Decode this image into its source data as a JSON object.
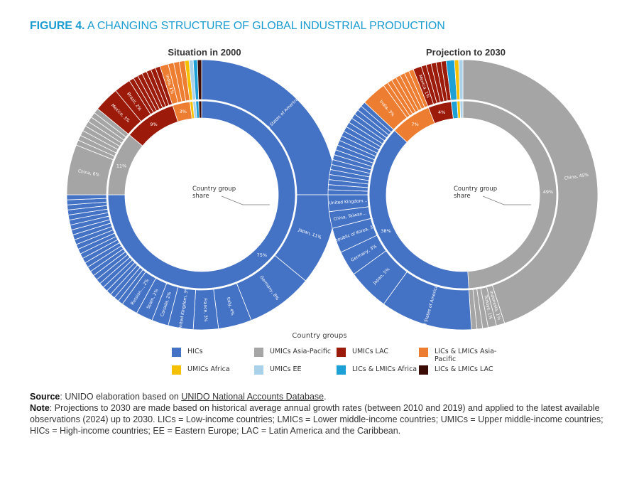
{
  "figure": {
    "label": "FIGURE 4.",
    "title": "A CHANGING STRUCTURE OF GLOBAL INDUSTRIAL PRODUCTION"
  },
  "colors": {
    "HICs": "#4472c4",
    "UMICs Asia-Pacific": "#a5a5a5",
    "UMICs LAC": "#9b1a0a",
    "LICs & LMICs Asia-Pacific": "#ed7d31",
    "UMICs Africa": "#f5c000",
    "UMICs EE": "#a9d2ea",
    "LICs & LMICs Africa": "#1ca0d6",
    "LICs & LMICs LAC": "#3b0b05"
  },
  "center_label": "Country group\nshare",
  "chart_data": [
    {
      "type": "pie",
      "subtype": "double-donut",
      "title": "Situation in 2000",
      "inner_ring": [
        {
          "group": "HICs",
          "value": 75,
          "label": "75%"
        },
        {
          "group": "UMICs Asia-Pacific",
          "value": 11,
          "label": "11%"
        },
        {
          "group": "UMICs LAC",
          "value": 9,
          "label": "9%"
        },
        {
          "group": "LICs & LMICs Asia-Pacific",
          "value": 3,
          "label": "3%"
        },
        {
          "group": "UMICs Africa",
          "value": 0.5,
          "label": ""
        },
        {
          "group": "UMICs EE",
          "value": 0.5,
          "label": ""
        },
        {
          "group": "LICs & LMICs Africa",
          "value": 0.5,
          "label": ""
        },
        {
          "group": "LICs & LMICs LAC",
          "value": 0.5,
          "label": ""
        }
      ],
      "outer_ring": [
        {
          "group": "HICs",
          "label": "United States of America, 25%",
          "value": 25
        },
        {
          "group": "HICs",
          "label": "Japan, 11%",
          "value": 11
        },
        {
          "group": "HICs",
          "label": "Germany, 8%",
          "value": 8
        },
        {
          "group": "HICs",
          "label": "Italy, 4%",
          "value": 4
        },
        {
          "group": "HICs",
          "label": "France, 3%",
          "value": 3
        },
        {
          "group": "HICs",
          "label": "United Kingdom, 3%",
          "value": 3
        },
        {
          "group": "HICs",
          "label": "Canada, 2%",
          "value": 2
        },
        {
          "group": "HICs",
          "label": "Spain, 2%",
          "value": 2
        },
        {
          "group": "HICs",
          "label": "Russian..., 2%",
          "value": 2
        },
        {
          "group": "HICs",
          "label": "",
          "value": 15
        },
        {
          "group": "UMICs Asia-Pacific",
          "label": "China, 6%",
          "value": 6
        },
        {
          "group": "UMICs Asia-Pacific",
          "label": "",
          "value": 5
        },
        {
          "group": "UMICs LAC",
          "label": "Mexico, 3%",
          "value": 3
        },
        {
          "group": "UMICs LAC",
          "label": "Brazil, 2%",
          "value": 2
        },
        {
          "group": "UMICs LAC",
          "label": "",
          "value": 4
        },
        {
          "group": "LICs & LMICs Asia-Pacific",
          "label": "India, 1%",
          "value": 1
        },
        {
          "group": "LICs & LMICs Asia-Pacific",
          "label": "",
          "value": 2
        },
        {
          "group": "UMICs Africa",
          "label": "",
          "value": 0.5
        },
        {
          "group": "UMICs EE",
          "label": "",
          "value": 0.5
        },
        {
          "group": "LICs & LMICs Africa",
          "label": "",
          "value": 0.5
        },
        {
          "group": "LICs & LMICs LAC",
          "label": "",
          "value": 0.5
        }
      ]
    },
    {
      "type": "pie",
      "subtype": "double-donut",
      "title": "Projection to 2030",
      "inner_ring": [
        {
          "group": "UMICs Asia-Pacific",
          "value": 49,
          "label": "49%"
        },
        {
          "group": "HICs",
          "value": 38,
          "label": "38%"
        },
        {
          "group": "LICs & LMICs Asia-Pacific",
          "value": 7,
          "label": "7%"
        },
        {
          "group": "UMICs LAC",
          "value": 4,
          "label": "4%"
        },
        {
          "group": "LICs & LMICs Africa",
          "value": 1,
          "label": ""
        },
        {
          "group": "UMICs Africa",
          "value": 0.5,
          "label": ""
        },
        {
          "group": "UMICs EE",
          "value": 0.5,
          "label": ""
        }
      ],
      "outer_ring": [
        {
          "group": "UMICs Asia-Pacific",
          "label": "China, 45%",
          "value": 45
        },
        {
          "group": "UMICs Asia-Pacific",
          "label": "Indonesia, 1%",
          "value": 1
        },
        {
          "group": "UMICs Asia-Pacific",
          "label": "Türkiye, 1%",
          "value": 1
        },
        {
          "group": "UMICs Asia-Pacific",
          "label": "",
          "value": 2
        },
        {
          "group": "HICs",
          "label": "United States of America, 11%",
          "value": 11
        },
        {
          "group": "HICs",
          "label": "Japan, 5%",
          "value": 5
        },
        {
          "group": "HICs",
          "label": "Germany, 3%",
          "value": 3
        },
        {
          "group": "HICs",
          "label": "Republic of Korea, 3%",
          "value": 3
        },
        {
          "group": "HICs",
          "label": "China, Taiwan...",
          "value": 2
        },
        {
          "group": "HICs",
          "label": "United Kingdom...",
          "value": 2
        },
        {
          "group": "HICs",
          "label": "",
          "value": 12
        },
        {
          "group": "LICs & LMICs Asia-Pacific",
          "label": "India, 3%",
          "value": 3
        },
        {
          "group": "LICs & LMICs Asia-Pacific",
          "label": "",
          "value": 4
        },
        {
          "group": "UMICs LAC",
          "label": "Mexico, 1%",
          "value": 1
        },
        {
          "group": "UMICs LAC",
          "label": "",
          "value": 3
        },
        {
          "group": "LICs & LMICs Africa",
          "label": "",
          "value": 1
        },
        {
          "group": "UMICs Africa",
          "label": "",
          "value": 0.5
        },
        {
          "group": "UMICs EE",
          "label": "",
          "value": 0.5
        }
      ]
    }
  ],
  "legend": {
    "title": "Country groups",
    "items": [
      {
        "label": "HICs",
        "color": "#4472c4"
      },
      {
        "label": "UMICs Asia-Pacific",
        "color": "#a5a5a5"
      },
      {
        "label": "UMICs LAC",
        "color": "#9b1a0a"
      },
      {
        "label": "LICs & LMICs Asia-Pacific",
        "color": "#ed7d31"
      },
      {
        "label": "UMICs Africa",
        "color": "#f5c000"
      },
      {
        "label": "UMICs EE",
        "color": "#a9d2ea"
      },
      {
        "label": "LICs & LMICs Africa",
        "color": "#1ca0d6"
      },
      {
        "label": "LICs & LMICs LAC",
        "color": "#3b0b05"
      }
    ]
  },
  "footer": {
    "source_label": "Source",
    "source_text": ": UNIDO elaboration based on ",
    "source_link": "UNIDO National Accounts Database",
    "source_end": ".",
    "note_label": "Note",
    "note_text": ": Projections to 2030 are made based on historical average annual growth rates (between 2010 and 2019) and applied to the latest available observations (2024) up to 2030. LICs = Low-income countries; LMICs = Lower middle-income countries; UMICs = Upper middle-income countries; HICs = High-income countries; EE = Eastern Europe; LAC = Latin America and the Caribbean."
  }
}
